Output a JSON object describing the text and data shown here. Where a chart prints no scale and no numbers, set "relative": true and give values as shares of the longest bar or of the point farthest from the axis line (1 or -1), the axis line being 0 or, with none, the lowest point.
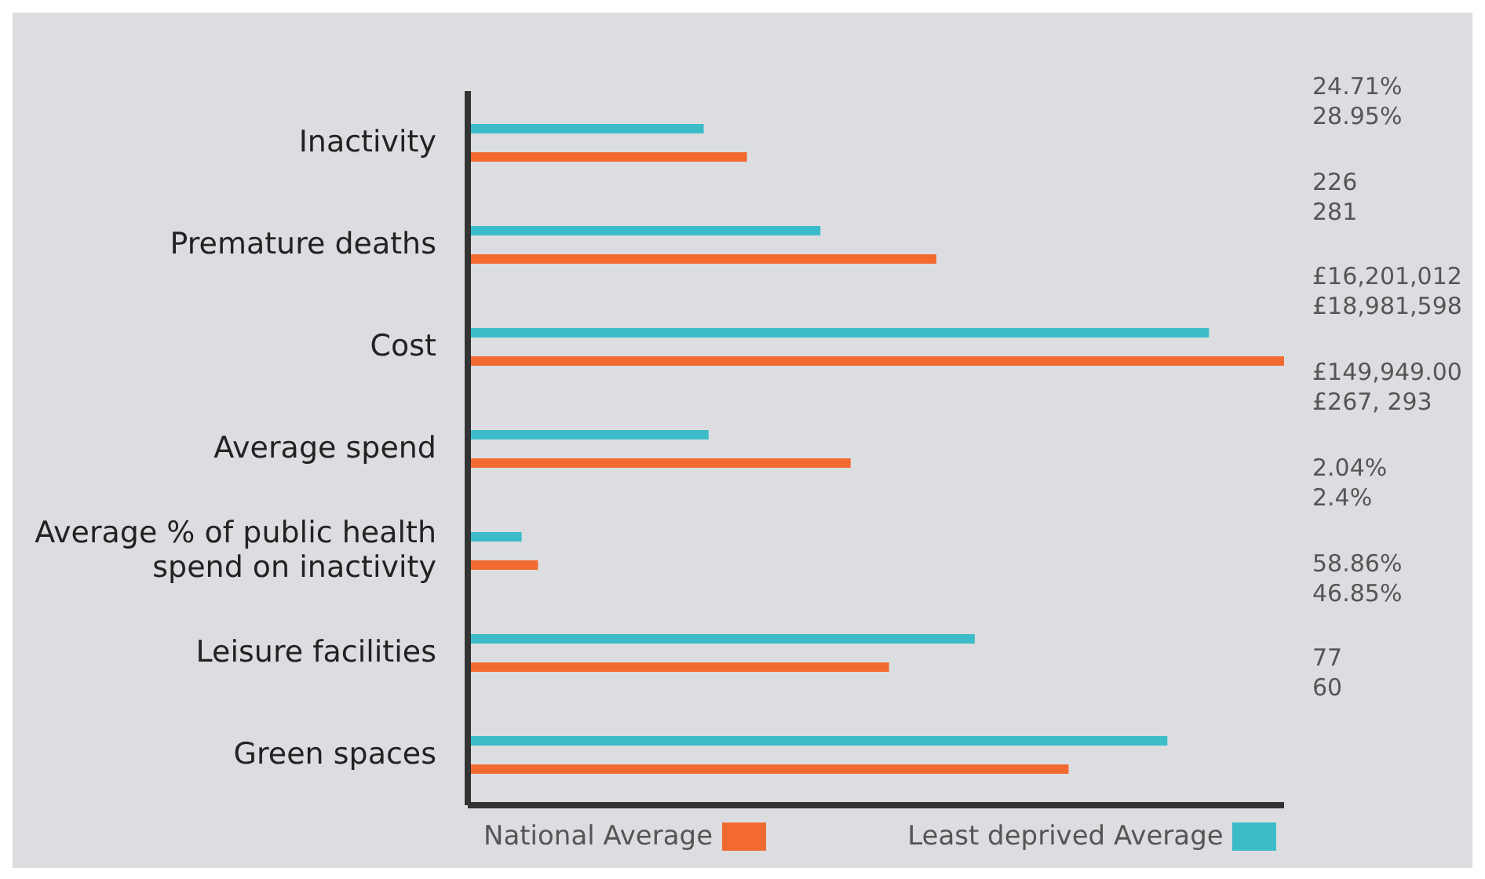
{
  "chart_data": {
    "type": "bar",
    "orientation": "horizontal",
    "relative": true,
    "legend": "bottom",
    "categories": [
      "Inactivity",
      "Premature deaths",
      "Cost",
      "Average spend",
      "Average % of public health spend on inactivity",
      "Leisure facilities",
      "Green spaces"
    ],
    "series": [
      {
        "name": "Least deprived Average",
        "color": "#3bbcc8",
        "values": [
          0.289,
          0.432,
          0.908,
          0.295,
          0.066,
          0.621,
          0.857
        ]
      },
      {
        "name": "National Average",
        "color": "#f26a30",
        "values": [
          0.342,
          0.574,
          1,
          0.469,
          0.086,
          0.516,
          0.736
        ]
      }
    ],
    "annotations": [
      "24.71%\n28.95%",
      "226\n281",
      "£16,201,012\n£18,981,598",
      "£149,949.00\n£267, 293",
      "2.04%\n2.4%",
      "58.86%\n46.85%",
      "77\n60"
    ]
  }
}
